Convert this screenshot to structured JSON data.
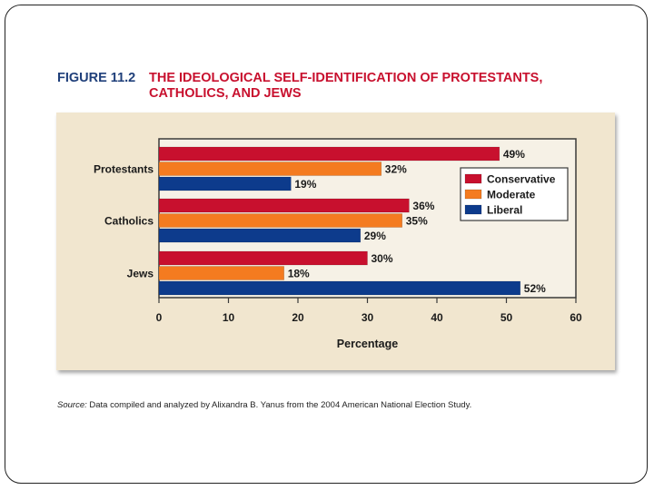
{
  "figure": {
    "label": "FIGURE 11.2",
    "title": "THE IDEOLOGICAL SELF-IDENTIFICATION OF PROTESTANTS, CATHOLICS, AND JEWS"
  },
  "source": {
    "label": "Source:",
    "text": "Data compiled and analyzed by Alixandra B. Yanus from the 2004 American National Election Study."
  },
  "chart_data": {
    "type": "bar",
    "orientation": "horizontal",
    "title": "THE IDEOLOGICAL SELF-IDENTIFICATION OF PROTESTANTS, CATHOLICS, AND JEWS",
    "categories": [
      "Protestants",
      "Catholics",
      "Jews"
    ],
    "series": [
      {
        "name": "Conservative",
        "color": "#c8102e",
        "values": [
          49,
          36,
          30
        ]
      },
      {
        "name": "Moderate",
        "color": "#f47b20",
        "values": [
          32,
          35,
          18
        ]
      },
      {
        "name": "Liberal",
        "color": "#0d3b8c",
        "values": [
          19,
          29,
          52
        ]
      }
    ],
    "data_labels": [
      [
        "49%",
        "32%",
        "19%"
      ],
      [
        "36%",
        "35%",
        "29%"
      ],
      [
        "30%",
        "18%",
        "52%"
      ]
    ],
    "xlabel": "Percentage",
    "ylabel": "",
    "xlim": [
      0,
      60
    ],
    "xticks": [
      "0",
      "10",
      "20",
      "30",
      "40",
      "50",
      "60"
    ],
    "legend_position": "right",
    "plot_background": "#f6f1e6"
  }
}
